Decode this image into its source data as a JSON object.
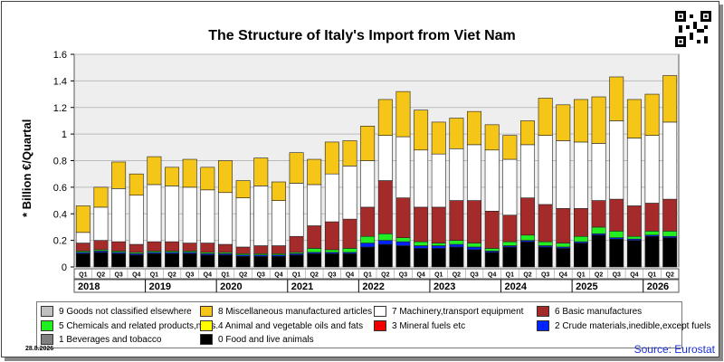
{
  "title": "The Structure of Italy's Import from Viet Nam",
  "ylabel": "* Billion €/Quartal",
  "source": "Source: Eurostat",
  "date": "28.8.2026",
  "chart_data": {
    "type": "bar",
    "stacked": true,
    "ylim": [
      0,
      1.6
    ],
    "yticks": [
      "0",
      "0.2",
      "0.4",
      "0.6",
      "0.8",
      "1",
      "1.2",
      "1.4",
      "1.6"
    ],
    "categories": [
      "Q1",
      "Q2",
      "Q3",
      "Q4",
      "Q1",
      "Q2",
      "Q3",
      "Q4",
      "Q1",
      "Q2",
      "Q3",
      "Q4",
      "Q1",
      "Q2",
      "Q3",
      "Q4",
      "Q1",
      "Q2",
      "Q3",
      "Q4",
      "Q1",
      "Q2",
      "Q3",
      "Q4",
      "Q1",
      "Q2",
      "Q3",
      "Q4",
      "Q1",
      "Q2",
      "Q3",
      "Q4",
      "Q1",
      "Q2"
    ],
    "years": [
      "2018",
      "2019",
      "2020",
      "2021",
      "2022",
      "2023",
      "2024",
      "2025",
      "2026"
    ],
    "grid": true,
    "background": "#eeeeee",
    "series": [
      {
        "name": "0 Food and live animals",
        "color": "#000000",
        "values": [
          0.1,
          0.11,
          0.1,
          0.09,
          0.1,
          0.1,
          0.1,
          0.09,
          0.09,
          0.08,
          0.08,
          0.08,
          0.09,
          0.1,
          0.1,
          0.1,
          0.15,
          0.17,
          0.16,
          0.14,
          0.14,
          0.15,
          0.13,
          0.11,
          0.15,
          0.19,
          0.15,
          0.14,
          0.18,
          0.24,
          0.21,
          0.2,
          0.23,
          0.22
        ]
      },
      {
        "name": "1 Beverages and tobacco",
        "color": "#808080",
        "values": [
          0,
          0,
          0,
          0,
          0,
          0,
          0,
          0,
          0,
          0,
          0,
          0,
          0,
          0,
          0,
          0,
          0,
          0,
          0,
          0,
          0,
          0,
          0,
          0,
          0,
          0,
          0,
          0,
          0,
          0,
          0,
          0,
          0,
          0
        ]
      },
      {
        "name": "2 Crude materials,inedible,except fuels",
        "color": "#0022ff",
        "values": [
          0.01,
          0.01,
          0.01,
          0.01,
          0.01,
          0.01,
          0.01,
          0.01,
          0.01,
          0.01,
          0.01,
          0.01,
          0.01,
          0.01,
          0.01,
          0.01,
          0.03,
          0.03,
          0.03,
          0.02,
          0.02,
          0.02,
          0.02,
          0.01,
          0.01,
          0.01,
          0.01,
          0.01,
          0.01,
          0.01,
          0.01,
          0.01,
          0.01,
          0.01
        ]
      },
      {
        "name": "3 Mineral fuels etc",
        "color": "#ee0000",
        "values": [
          0,
          0,
          0,
          0,
          0,
          0,
          0,
          0,
          0,
          0,
          0,
          0,
          0,
          0,
          0,
          0,
          0,
          0,
          0,
          0,
          0,
          0,
          0,
          0,
          0,
          0,
          0,
          0,
          0,
          0,
          0,
          0,
          0,
          0
        ]
      },
      {
        "name": "5 Chemicals and related products,n.e.s.",
        "color": "#22ee22",
        "values": [
          0.01,
          0.01,
          0.01,
          0.01,
          0.01,
          0.01,
          0.01,
          0.01,
          0.01,
          0.01,
          0.01,
          0.01,
          0.01,
          0.03,
          0.02,
          0.03,
          0.05,
          0.05,
          0.03,
          0.03,
          0.02,
          0.03,
          0.03,
          0.02,
          0.03,
          0.04,
          0.03,
          0.03,
          0.04,
          0.05,
          0.05,
          0.02,
          0.03,
          0.04
        ]
      },
      {
        "name": "6 Basic manufactures",
        "color": "#a52a2a",
        "values": [
          0.06,
          0.07,
          0.07,
          0.06,
          0.07,
          0.07,
          0.06,
          0.07,
          0.06,
          0.05,
          0.06,
          0.06,
          0.12,
          0.17,
          0.21,
          0.22,
          0.22,
          0.4,
          0.3,
          0.26,
          0.27,
          0.3,
          0.32,
          0.28,
          0.2,
          0.28,
          0.28,
          0.26,
          0.21,
          0.2,
          0.24,
          0.23,
          0.21,
          0.24
        ]
      },
      {
        "name": "7 Machinery,transport equipment",
        "color": "#ffffff",
        "values": [
          0.08,
          0.25,
          0.4,
          0.37,
          0.43,
          0.42,
          0.42,
          0.4,
          0.39,
          0.37,
          0.45,
          0.34,
          0.4,
          0.31,
          0.36,
          0.4,
          0.35,
          0.34,
          0.46,
          0.43,
          0.4,
          0.39,
          0.42,
          0.46,
          0.42,
          0.4,
          0.52,
          0.51,
          0.5,
          0.43,
          0.59,
          0.51,
          0.51,
          0.58
        ]
      },
      {
        "name": "4 Animal and vegetable oils and fats",
        "color": "#ffff00",
        "values": [
          0,
          0,
          0,
          0,
          0,
          0,
          0,
          0,
          0,
          0,
          0,
          0,
          0,
          0,
          0,
          0,
          0,
          0,
          0,
          0,
          0,
          0,
          0,
          0,
          0,
          0,
          0,
          0,
          0,
          0,
          0,
          0,
          0,
          0
        ]
      },
      {
        "name": "8 Miscellaneous manufactured articles",
        "color": "#f5c518",
        "values": [
          0.2,
          0.15,
          0.2,
          0.16,
          0.21,
          0.14,
          0.21,
          0.17,
          0.24,
          0.13,
          0.21,
          0.14,
          0.23,
          0.19,
          0.24,
          0.19,
          0.26,
          0.27,
          0.34,
          0.3,
          0.24,
          0.23,
          0.25,
          0.19,
          0.18,
          0.18,
          0.28,
          0.27,
          0.32,
          0.35,
          0.33,
          0.29,
          0.31,
          0.35
        ]
      },
      {
        "name": "9 Goods not classified elsewhere",
        "color": "#c0c0c0",
        "values": [
          0,
          0,
          0,
          0,
          0,
          0,
          0,
          0,
          0,
          0,
          0,
          0,
          0,
          0,
          0,
          0,
          0,
          0,
          0,
          0,
          0,
          0,
          0,
          0,
          0,
          0,
          0,
          0,
          0,
          0,
          0,
          0,
          0,
          0
        ]
      }
    ]
  },
  "legend": [
    {
      "label": "9 Goods not classified elsewhere",
      "color": "#c0c0c0"
    },
    {
      "label": "8 Miscellaneous manufactured articles",
      "color": "#f5c518"
    },
    {
      "label": "7 Machinery,transport equipment",
      "color": "#ffffff"
    },
    {
      "label": "6 Basic manufactures",
      "color": "#a52a2a"
    },
    {
      "label": "5 Chemicals and related products,n.e.s.",
      "color": "#22ee22"
    },
    {
      "label": "4 Animal and vegetable oils and fats",
      "color": "#ffff00"
    },
    {
      "label": "3 Mineral fuels etc",
      "color": "#ee0000"
    },
    {
      "label": "2 Crude materials,inedible,except fuels",
      "color": "#0022ff"
    },
    {
      "label": "1 Beverages and tobacco",
      "color": "#808080"
    },
    {
      "label": "0 Food and live animals",
      "color": "#000000"
    }
  ]
}
